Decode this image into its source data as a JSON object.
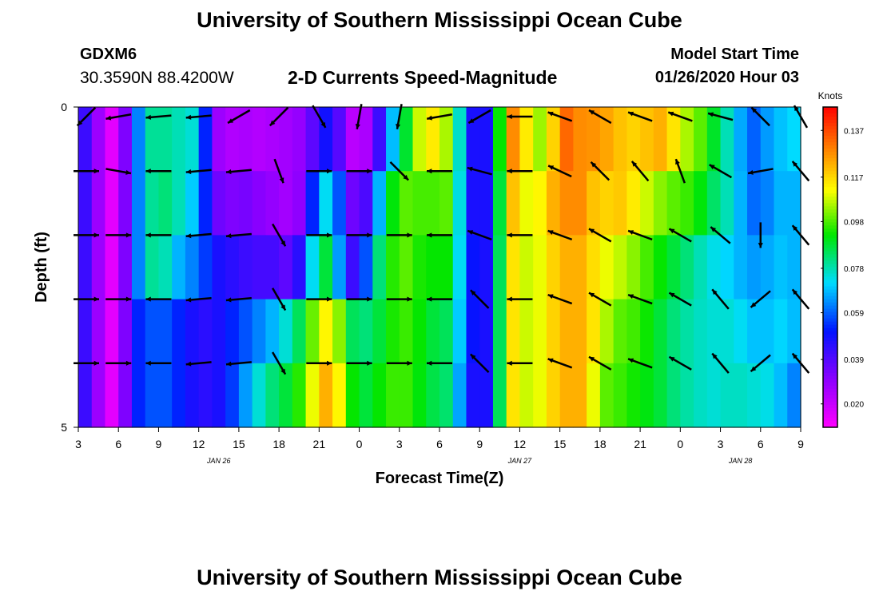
{
  "page": {
    "title_top": "University of Southern Mississippi Ocean Cube",
    "title_bottom": "University of Southern Mississippi Ocean Cube",
    "station_id": "GDXM6",
    "station_coords": "30.3590N 88.4200W",
    "model_start_label": "Model Start Time",
    "model_start_value": "01/26/2020 Hour 03"
  },
  "chart_data": {
    "type": "heatmap",
    "title": "2-D Currents Speed-Magnitude",
    "xlabel": "Forecast Time(Z)",
    "ylabel": "Depth (ft)",
    "x_tick_labels": [
      "3",
      "6",
      "9",
      "12",
      "15",
      "18",
      "21",
      "0",
      "3",
      "6",
      "9",
      "12",
      "15",
      "18",
      "21",
      "0",
      "3",
      "6",
      "9"
    ],
    "x_tick_hours": [
      0,
      3,
      6,
      9,
      12,
      15,
      18,
      21,
      24,
      27,
      30,
      33,
      36,
      39,
      42,
      45,
      48,
      51,
      54
    ],
    "date_labels": [
      {
        "text": "JAN 26",
        "hour": 10.5
      },
      {
        "text": "JAN 27",
        "hour": 33
      },
      {
        "text": "JAN 28",
        "hour": 49.5
      }
    ],
    "xlim_hours": [
      0,
      54
    ],
    "y_ticks": [
      0,
      1,
      2,
      3,
      4,
      5
    ],
    "y_tick_labels": [
      "0",
      "",
      "",
      "",
      "",
      "5"
    ],
    "ylim": [
      0,
      5
    ],
    "colorbar": {
      "title": "Knots",
      "range": [
        0.01,
        0.147
      ],
      "tick_values": [
        0.02,
        0.039,
        0.059,
        0.078,
        0.098,
        0.117,
        0.137
      ],
      "tick_labels": [
        "0.020",
        "0.039",
        "0.059",
        "0.078",
        "0.098",
        "0.117",
        "0.137"
      ]
    },
    "time_step_hours": 1,
    "depth_layers": [
      0.5,
      1.5,
      2.5,
      3.5,
      4.5
    ],
    "layer_speed_keypoints": [
      [
        [
          0,
          0.045
        ],
        [
          1,
          0.04
        ],
        [
          2,
          0.015
        ],
        [
          3,
          0.015
        ],
        [
          4,
          0.05
        ],
        [
          5,
          0.075
        ],
        [
          6,
          0.085
        ],
        [
          7,
          0.075
        ],
        [
          8,
          0.08
        ],
        [
          9,
          0.07
        ],
        [
          10,
          0.035
        ],
        [
          11,
          0.02
        ],
        [
          12,
          0.028
        ],
        [
          13,
          0.022
        ],
        [
          14,
          0.025
        ],
        [
          15,
          0.025
        ],
        [
          16,
          0.028
        ],
        [
          17,
          0.03
        ],
        [
          18,
          0.045
        ],
        [
          19,
          0.052
        ],
        [
          20,
          0.025
        ],
        [
          21,
          0.02
        ],
        [
          22,
          0.03
        ],
        [
          23,
          0.055
        ],
        [
          24,
          0.082
        ],
        [
          25,
          0.095
        ],
        [
          26,
          0.12
        ],
        [
          27,
          0.108
        ],
        [
          28,
          0.102
        ],
        [
          29,
          0.05
        ],
        [
          30,
          0.045
        ],
        [
          31,
          0.05
        ],
        [
          32,
          0.135
        ],
        [
          33,
          0.12
        ],
        [
          34,
          0.108
        ],
        [
          35,
          0.1
        ],
        [
          36,
          0.135
        ],
        [
          37,
          0.13
        ],
        [
          38,
          0.125
        ],
        [
          39,
          0.128
        ],
        [
          40,
          0.12
        ],
        [
          41,
          0.12
        ],
        [
          42,
          0.115
        ],
        [
          43,
          0.125
        ],
        [
          44,
          0.12
        ],
        [
          45,
          0.11
        ],
        [
          46,
          0.1
        ],
        [
          47,
          0.098
        ],
        [
          48,
          0.08
        ],
        [
          49,
          0.075
        ],
        [
          50,
          0.058
        ],
        [
          51,
          0.06
        ],
        [
          52,
          0.07
        ],
        [
          53,
          0.068
        ],
        [
          54,
          0.075
        ]
      ],
      [
        [
          0,
          0.045
        ],
        [
          1,
          0.04
        ],
        [
          2,
          0.015
        ],
        [
          3,
          0.015
        ],
        [
          4,
          0.05
        ],
        [
          5,
          0.075
        ],
        [
          6,
          0.085
        ],
        [
          7,
          0.08
        ],
        [
          8,
          0.075
        ],
        [
          9,
          0.065
        ],
        [
          10,
          0.04
        ],
        [
          11,
          0.03
        ],
        [
          12,
          0.035
        ],
        [
          13,
          0.032
        ],
        [
          14,
          0.03
        ],
        [
          15,
          0.028
        ],
        [
          16,
          0.025
        ],
        [
          17,
          0.035
        ],
        [
          18,
          0.07
        ],
        [
          19,
          0.075
        ],
        [
          20,
          0.04
        ],
        [
          21,
          0.03
        ],
        [
          22,
          0.05
        ],
        [
          23,
          0.085
        ],
        [
          24,
          0.098
        ],
        [
          25,
          0.1
        ],
        [
          26,
          0.095
        ],
        [
          27,
          0.1
        ],
        [
          28,
          0.098
        ],
        [
          29,
          0.05
        ],
        [
          30,
          0.045
        ],
        [
          31,
          0.05
        ],
        [
          32,
          0.125
        ],
        [
          33,
          0.115
        ],
        [
          34,
          0.105
        ],
        [
          35,
          0.12
        ],
        [
          36,
          0.125
        ],
        [
          37,
          0.13
        ],
        [
          38,
          0.125
        ],
        [
          39,
          0.115
        ],
        [
          40,
          0.12
        ],
        [
          41,
          0.118
        ],
        [
          42,
          0.11
        ],
        [
          43,
          0.105
        ],
        [
          44,
          0.1
        ],
        [
          45,
          0.098
        ],
        [
          46,
          0.095
        ],
        [
          47,
          0.088
        ],
        [
          48,
          0.08
        ],
        [
          49,
          0.075
        ],
        [
          50,
          0.06
        ],
        [
          51,
          0.06
        ],
        [
          52,
          0.065
        ],
        [
          53,
          0.07
        ],
        [
          54,
          0.065
        ]
      ],
      [
        [
          0,
          0.045
        ],
        [
          1,
          0.04
        ],
        [
          2,
          0.015
        ],
        [
          3,
          0.015
        ],
        [
          4,
          0.05
        ],
        [
          5,
          0.075
        ],
        [
          6,
          0.085
        ],
        [
          7,
          0.07
        ],
        [
          8,
          0.065
        ],
        [
          9,
          0.06
        ],
        [
          10,
          0.05
        ],
        [
          11,
          0.045
        ],
        [
          12,
          0.045
        ],
        [
          13,
          0.04
        ],
        [
          14,
          0.042
        ],
        [
          15,
          0.04
        ],
        [
          16,
          0.035
        ],
        [
          17,
          0.055
        ],
        [
          18,
          0.09
        ],
        [
          19,
          0.085
        ],
        [
          20,
          0.045
        ],
        [
          21,
          0.04
        ],
        [
          22,
          0.075
        ],
        [
          23,
          0.09
        ],
        [
          24,
          0.1
        ],
        [
          25,
          0.098
        ],
        [
          26,
          0.09
        ],
        [
          27,
          0.095
        ],
        [
          28,
          0.09
        ],
        [
          29,
          0.055
        ],
        [
          30,
          0.045
        ],
        [
          31,
          0.05
        ],
        [
          32,
          0.12
        ],
        [
          33,
          0.11
        ],
        [
          34,
          0.105
        ],
        [
          35,
          0.115
        ],
        [
          36,
          0.12
        ],
        [
          37,
          0.125
        ],
        [
          38,
          0.12
        ],
        [
          39,
          0.112
        ],
        [
          40,
          0.108
        ],
        [
          41,
          0.105
        ],
        [
          42,
          0.1
        ],
        [
          43,
          0.095
        ],
        [
          44,
          0.09
        ],
        [
          45,
          0.085
        ],
        [
          46,
          0.08
        ],
        [
          47,
          0.075
        ],
        [
          48,
          0.072
        ],
        [
          49,
          0.07
        ],
        [
          50,
          0.065
        ],
        [
          51,
          0.065
        ],
        [
          52,
          0.068
        ],
        [
          53,
          0.07
        ],
        [
          54,
          0.065
        ]
      ],
      [
        [
          0,
          0.045
        ],
        [
          1,
          0.04
        ],
        [
          2,
          0.015
        ],
        [
          3,
          0.015
        ],
        [
          4,
          0.05
        ],
        [
          5,
          0.055
        ],
        [
          6,
          0.06
        ],
        [
          7,
          0.055
        ],
        [
          8,
          0.05
        ],
        [
          9,
          0.045
        ],
        [
          10,
          0.045
        ],
        [
          11,
          0.05
        ],
        [
          12,
          0.055
        ],
        [
          13,
          0.06
        ],
        [
          14,
          0.065
        ],
        [
          15,
          0.07
        ],
        [
          16,
          0.08
        ],
        [
          17,
          0.09
        ],
        [
          18,
          0.11
        ],
        [
          19,
          0.115
        ],
        [
          20,
          0.09
        ],
        [
          21,
          0.08
        ],
        [
          22,
          0.085
        ],
        [
          23,
          0.09
        ],
        [
          24,
          0.098
        ],
        [
          25,
          0.095
        ],
        [
          26,
          0.09
        ],
        [
          27,
          0.085
        ],
        [
          28,
          0.085
        ],
        [
          29,
          0.055
        ],
        [
          30,
          0.045
        ],
        [
          31,
          0.05
        ],
        [
          32,
          0.12
        ],
        [
          33,
          0.11
        ],
        [
          34,
          0.105
        ],
        [
          35,
          0.115
        ],
        [
          36,
          0.12
        ],
        [
          37,
          0.125
        ],
        [
          38,
          0.12
        ],
        [
          39,
          0.11
        ],
        [
          40,
          0.1
        ],
        [
          41,
          0.098
        ],
        [
          42,
          0.096
        ],
        [
          43,
          0.09
        ],
        [
          44,
          0.085
        ],
        [
          45,
          0.08
        ],
        [
          46,
          0.078
        ],
        [
          47,
          0.075
        ],
        [
          48,
          0.075
        ],
        [
          49,
          0.075
        ],
        [
          50,
          0.07
        ],
        [
          51,
          0.068
        ],
        [
          52,
          0.07
        ],
        [
          53,
          0.072
        ],
        [
          54,
          0.065
        ]
      ],
      [
        [
          0,
          0.045
        ],
        [
          1,
          0.04
        ],
        [
          2,
          0.015
        ],
        [
          3,
          0.015
        ],
        [
          4,
          0.05
        ],
        [
          5,
          0.055
        ],
        [
          6,
          0.06
        ],
        [
          7,
          0.055
        ],
        [
          8,
          0.05
        ],
        [
          9,
          0.045
        ],
        [
          10,
          0.045
        ],
        [
          11,
          0.05
        ],
        [
          12,
          0.06
        ],
        [
          13,
          0.07
        ],
        [
          14,
          0.08
        ],
        [
          15,
          0.085
        ],
        [
          16,
          0.09
        ],
        [
          17,
          0.1
        ],
        [
          18,
          0.12
        ],
        [
          19,
          0.125
        ],
        [
          20,
          0.1
        ],
        [
          21,
          0.085
        ],
        [
          22,
          0.09
        ],
        [
          23,
          0.095
        ],
        [
          24,
          0.098
        ],
        [
          25,
          0.095
        ],
        [
          26,
          0.088
        ],
        [
          27,
          0.085
        ],
        [
          28,
          0.082
        ],
        [
          29,
          0.05
        ],
        [
          30,
          0.045
        ],
        [
          31,
          0.05
        ],
        [
          32,
          0.12
        ],
        [
          33,
          0.11
        ],
        [
          34,
          0.105
        ],
        [
          35,
          0.115
        ],
        [
          36,
          0.12
        ],
        [
          37,
          0.125
        ],
        [
          38,
          0.12
        ],
        [
          39,
          0.1
        ],
        [
          40,
          0.098
        ],
        [
          41,
          0.095
        ],
        [
          42,
          0.092
        ],
        [
          43,
          0.09
        ],
        [
          44,
          0.085
        ],
        [
          45,
          0.08
        ],
        [
          46,
          0.078
        ],
        [
          47,
          0.075
        ],
        [
          48,
          0.075
        ],
        [
          49,
          0.078
        ],
        [
          50,
          0.075
        ],
        [
          51,
          0.075
        ],
        [
          52,
          0.072
        ],
        [
          53,
          0.065
        ],
        [
          54,
          0.06
        ]
      ]
    ],
    "vector_hours": [
      0,
      3,
      6,
      9,
      12,
      15,
      18,
      21,
      24,
      27,
      30,
      33,
      36,
      39,
      42,
      45,
      48,
      51,
      54
    ],
    "vector_direction_deg": [
      [
        225,
        260,
        265,
        265,
        240,
        225,
        150,
        190,
        190,
        260,
        240,
        270,
        290,
        300,
        290,
        290,
        285,
        315,
        330
      ],
      [
        90,
        100,
        270,
        265,
        265,
        160,
        90,
        90,
        135,
        270,
        285,
        270,
        295,
        315,
        320,
        340,
        300,
        260,
        320
      ],
      [
        90,
        90,
        270,
        265,
        265,
        150,
        90,
        90,
        90,
        270,
        290,
        270,
        290,
        300,
        290,
        300,
        310,
        180,
        320
      ],
      [
        90,
        90,
        270,
        265,
        265,
        150,
        90,
        90,
        90,
        270,
        315,
        270,
        290,
        300,
        290,
        300,
        320,
        230,
        320
      ],
      [
        90,
        90,
        270,
        265,
        265,
        150,
        90,
        90,
        90,
        270,
        315,
        270,
        290,
        300,
        290,
        300,
        320,
        230,
        320
      ]
    ]
  }
}
